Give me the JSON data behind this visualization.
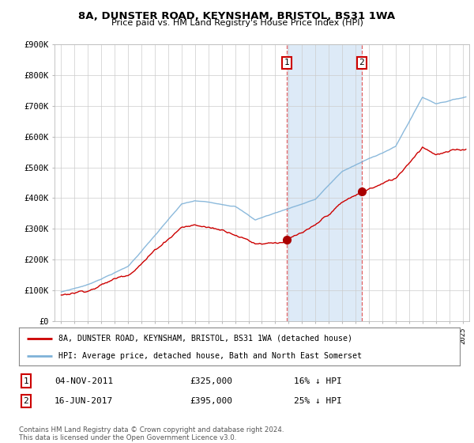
{
  "title": "8A, DUNSTER ROAD, KEYNSHAM, BRISTOL, BS31 1WA",
  "subtitle": "Price paid vs. HM Land Registry's House Price Index (HPI)",
  "yticks": [
    0,
    100000,
    200000,
    300000,
    400000,
    500000,
    600000,
    700000,
    800000,
    900000
  ],
  "ytick_labels": [
    "£0",
    "£100K",
    "£200K",
    "£300K",
    "£400K",
    "£500K",
    "£600K",
    "£700K",
    "£800K",
    "£900K"
  ],
  "xmin": 1994.5,
  "xmax": 2025.5,
  "ymin": 0,
  "ymax": 900000,
  "hpi_color": "#7fb2d8",
  "price_color": "#cc0000",
  "transaction1_date": "04-NOV-2011",
  "transaction1_price": 325000,
  "transaction1_hpi_pct": "16% ↓ HPI",
  "transaction1_year": 2011.84,
  "transaction2_date": "16-JUN-2017",
  "transaction2_price": 395000,
  "transaction2_hpi_pct": "25% ↓ HPI",
  "transaction2_year": 2017.46,
  "legend_line1": "8A, DUNSTER ROAD, KEYNSHAM, BRISTOL, BS31 1WA (detached house)",
  "legend_line2": "HPI: Average price, detached house, Bath and North East Somerset",
  "footnote": "Contains HM Land Registry data © Crown copyright and database right 2024.\nThis data is licensed under the Open Government Licence v3.0.",
  "shading_start": 2011.84,
  "shading_end": 2017.46,
  "shading_color": "#ddeaf7",
  "marker_color": "#aa0000",
  "dashed_line_color": "#dd4444"
}
